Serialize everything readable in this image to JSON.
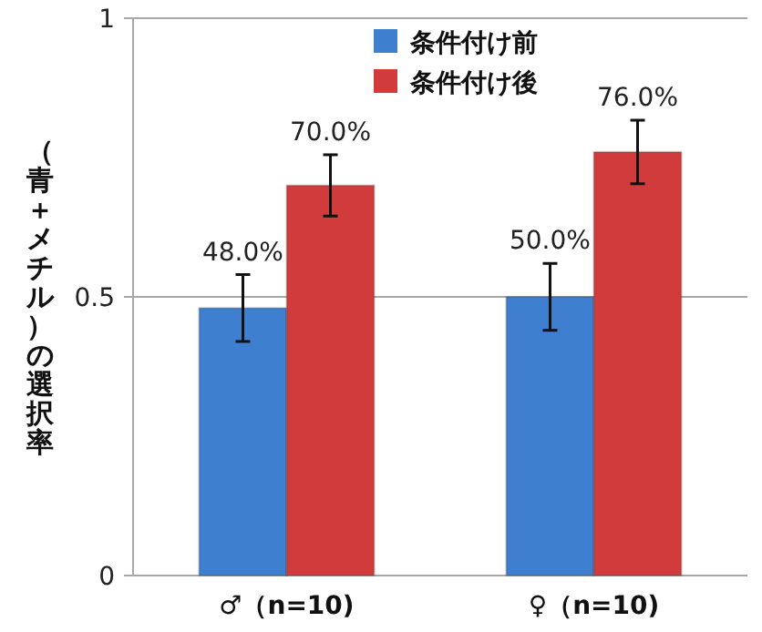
{
  "chart_data": {
    "type": "bar",
    "ylabel": "（青＋メチル）の選択率",
    "categories": [
      "♂（n=10)",
      "♀（n=10)"
    ],
    "series": [
      {
        "name": "条件付け前",
        "color": "#3f7fcf",
        "values": [
          0.48,
          0.5
        ],
        "errors": [
          0.06,
          0.06
        ],
        "value_labels": [
          "48.0%",
          "50.0%"
        ]
      },
      {
        "name": "条件付け後",
        "color": "#d23b3b",
        "values": [
          0.7,
          0.76
        ],
        "errors": [
          0.055,
          0.057
        ],
        "value_labels": [
          "70.0%",
          "76.0%"
        ]
      }
    ],
    "ylim": [
      0,
      1
    ],
    "yticks": [
      0,
      0.5,
      1
    ],
    "grid": "y",
    "legend": "top"
  }
}
